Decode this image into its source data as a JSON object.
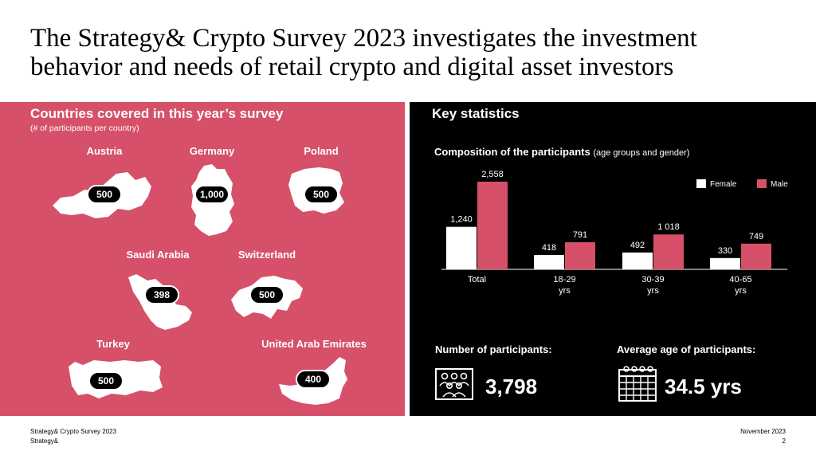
{
  "title": "The Strategy& Crypto Survey 2023 investigates the investment behavior and needs of retail crypto and digital asset investors",
  "left": {
    "heading": "Countries covered in this year’s survey",
    "subheading": "(# of participants per country)",
    "countries": [
      {
        "name": "Austria",
        "participants": "500"
      },
      {
        "name": "Germany",
        "participants": "1,000"
      },
      {
        "name": "Poland",
        "participants": "500"
      },
      {
        "name": "Saudi Arabia",
        "participants": "398"
      },
      {
        "name": "Switzerland",
        "participants": "500"
      },
      {
        "name": "Turkey",
        "participants": "500"
      },
      {
        "name": "United Arab Emirates",
        "participants": "400"
      }
    ],
    "colors": {
      "background": "#d6506a",
      "pill": "#000000",
      "shape": "#ffffff"
    }
  },
  "right": {
    "heading": "Key statistics",
    "chart_title_bold": "Composition of the participants",
    "chart_title_note": "(age groups and gender)",
    "participants_label": "Number of participants:",
    "participants_value": "3,798",
    "avg_age_label": "Average age of participants:",
    "avg_age_value": "34.5 yrs",
    "colors": {
      "background": "#000000",
      "female": "#ffffff",
      "male": "#d6506a"
    }
  },
  "chart_data": {
    "type": "bar",
    "categories": [
      "Total",
      "18-29 yrs",
      "30-39 yrs",
      "40-65 yrs"
    ],
    "series": [
      {
        "name": "Female",
        "values": [
          1240,
          418,
          492,
          330
        ],
        "labels": [
          "1,240",
          "418",
          "492",
          "330"
        ]
      },
      {
        "name": "Male",
        "values": [
          2558,
          791,
          1018,
          749
        ],
        "labels": [
          "2,558",
          "791",
          "1 018",
          "749"
        ]
      }
    ],
    "legend": "top-right",
    "grid": false
  },
  "footer": {
    "left_line1": "Strategy& Crypto Survey 2023",
    "left_line2": "Strategy&",
    "right_line1": "November 2023",
    "right_line2": "2"
  }
}
